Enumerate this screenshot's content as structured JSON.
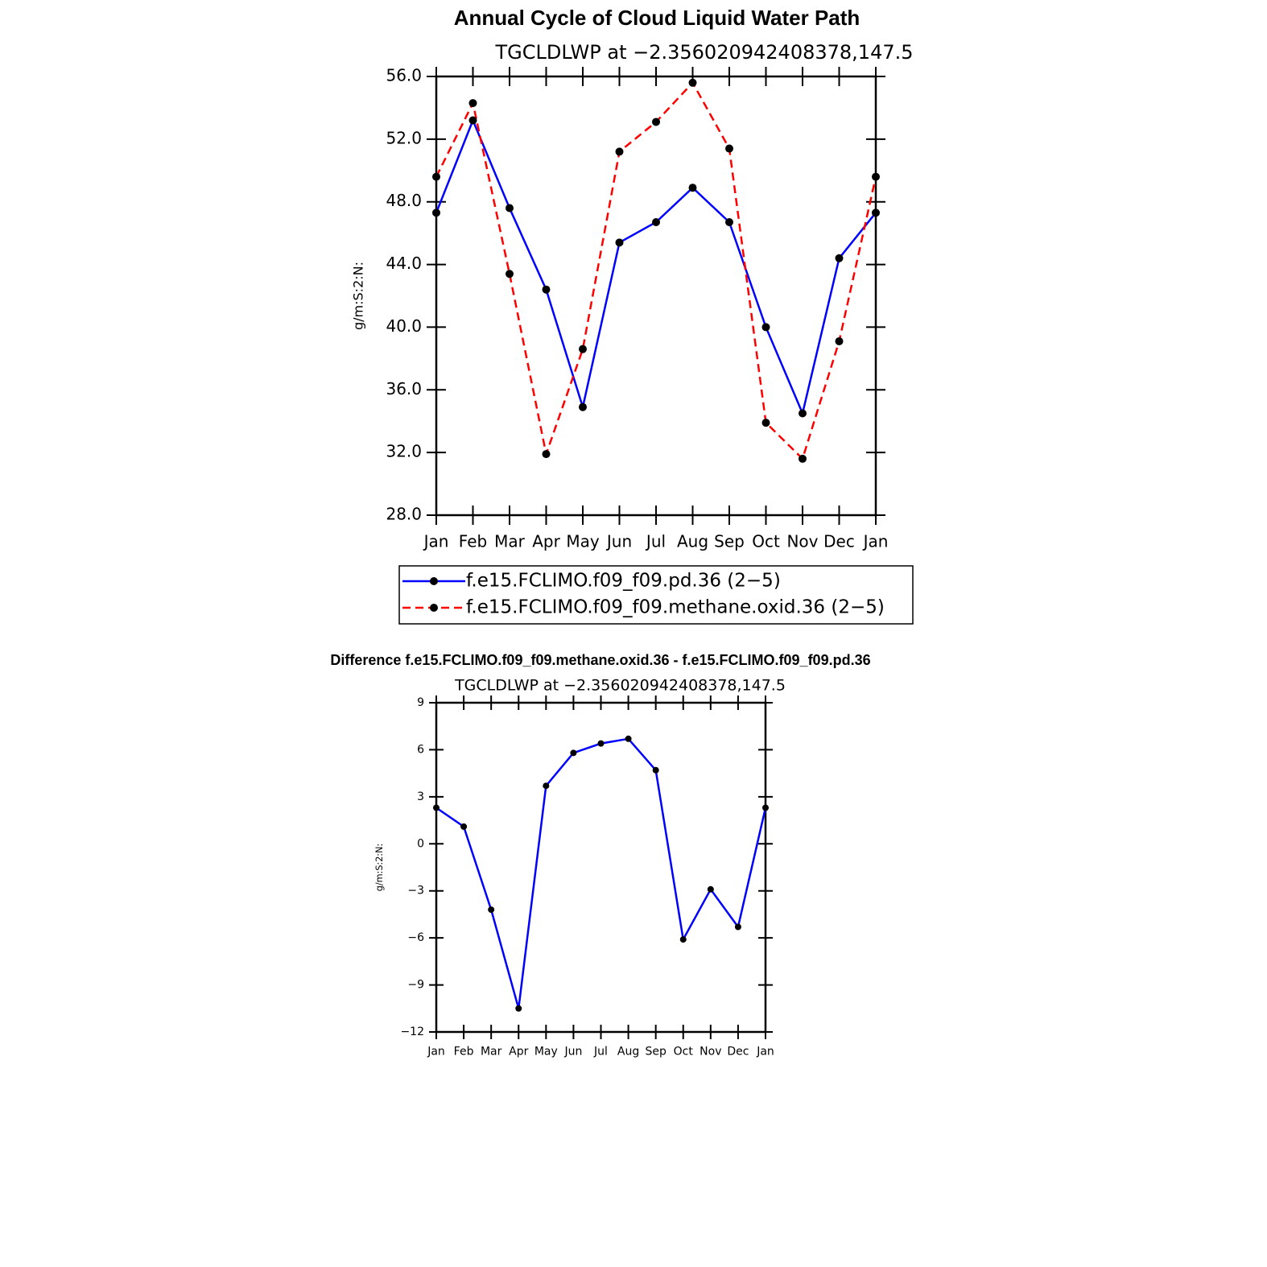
{
  "chart_data": [
    {
      "type": "line",
      "title": "Annual Cycle of Cloud Liquid Water Path",
      "subtitle": "TGCLDLWP at −2.356020942408378,147.5",
      "ylabel": "g/m:S:2:N:",
      "categories": [
        "Jan",
        "Feb",
        "Mar",
        "Apr",
        "May",
        "Jun",
        "Jul",
        "Aug",
        "Sep",
        "Oct",
        "Nov",
        "Dec",
        "Jan"
      ],
      "series": [
        {
          "name": "f.e15.FCLIMO.f09_f09.pd.36 (2−5)",
          "color": "#0000ff",
          "linestyle": "solid",
          "values": [
            47.3,
            53.2,
            47.6,
            42.4,
            34.9,
            45.4,
            46.7,
            48.9,
            46.7,
            40.0,
            34.5,
            44.4,
            47.3
          ]
        },
        {
          "name": "f.e15.FCLIMO.f09_f09.methane.oxid.36 (2−5)",
          "color": "#ff0000",
          "linestyle": "dashed",
          "values": [
            49.6,
            54.3,
            43.4,
            31.9,
            38.6,
            51.2,
            53.1,
            55.6,
            51.4,
            33.9,
            31.6,
            39.1,
            49.6
          ]
        }
      ],
      "ylim": [
        28,
        56
      ],
      "yticks": [
        {
          "value": 28,
          "label": "28.0"
        },
        {
          "value": 32,
          "label": "32.0"
        },
        {
          "value": 36,
          "label": "36.0"
        },
        {
          "value": 40,
          "label": "40.0"
        },
        {
          "value": 44,
          "label": "44.0"
        },
        {
          "value": 48,
          "label": "48.0"
        },
        {
          "value": 52,
          "label": "52.0"
        },
        {
          "value": 56,
          "label": "56.0"
        }
      ]
    },
    {
      "type": "line",
      "title": "Difference f.e15.FCLIMO.f09_f09.methane.oxid.36 - f.e15.FCLIMO.f09_f09.pd.36",
      "subtitle": "TGCLDLWP at −2.356020942408378,147.5",
      "ylabel": "g/m:S:2:N:",
      "categories": [
        "Jan",
        "Feb",
        "Mar",
        "Apr",
        "May",
        "Jun",
        "Jul",
        "Aug",
        "Sep",
        "Oct",
        "Nov",
        "Dec",
        "Jan"
      ],
      "series": [
        {
          "color": "#0000ff",
          "linestyle": "solid",
          "values": [
            2.3,
            1.1,
            -4.2,
            -10.5,
            3.7,
            5.8,
            6.4,
            6.7,
            4.7,
            -6.1,
            -2.9,
            -5.3,
            2.3
          ]
        }
      ],
      "ylim": [
        -12,
        9
      ],
      "yticks": [
        {
          "value": -12,
          "label": "−12"
        },
        {
          "value": -9,
          "label": "−9"
        },
        {
          "value": -6,
          "label": "−6"
        },
        {
          "value": -3,
          "label": "−3"
        },
        0,
        3,
        6,
        9
      ]
    }
  ]
}
